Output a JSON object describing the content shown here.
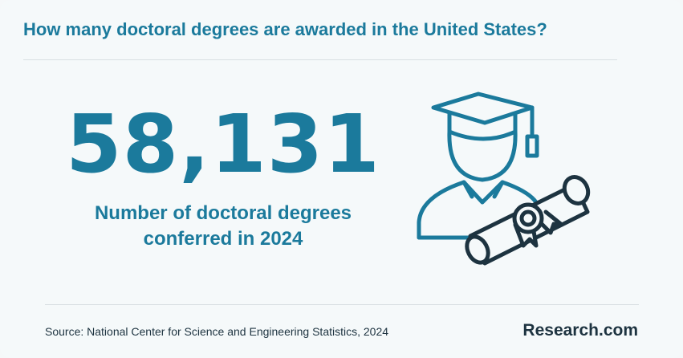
{
  "title": "How many doctoral degrees are awarded in the United States?",
  "stat": {
    "value": "58,131",
    "caption_line1": "Number of doctoral degrees",
    "caption_line2": "conferred in 2024"
  },
  "illustration": {
    "icon": "graduate-with-diploma-icon"
  },
  "footer": {
    "source": "Source: National Center for Science and Engineering Statistics, 2024",
    "logo": "Research.com"
  },
  "colors": {
    "accent": "#1b7a9c",
    "dark": "#1d3340",
    "background": "#f5f9fa"
  }
}
